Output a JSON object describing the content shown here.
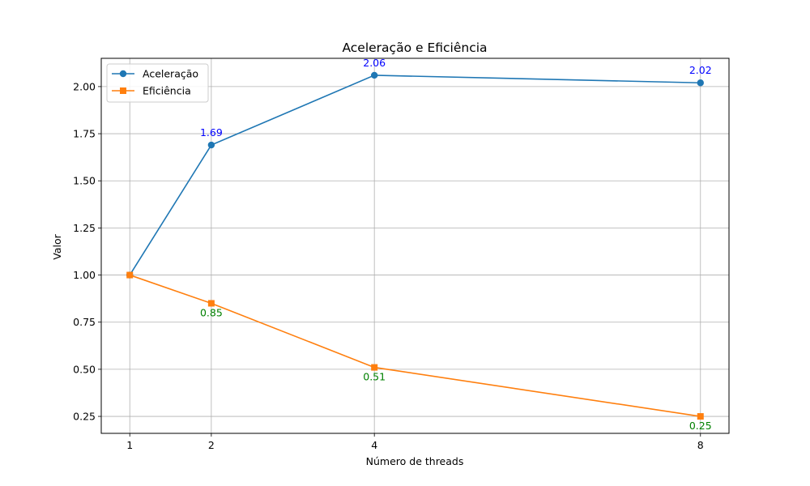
{
  "chart_data": {
    "type": "line",
    "title": "Aceleração e Eficiência",
    "xlabel": "Número de threads",
    "ylabel": "Valor",
    "x": [
      1,
      2,
      4,
      8
    ],
    "xticks": [
      "1",
      "2",
      "4",
      "8"
    ],
    "yticks": [
      "0.25",
      "0.50",
      "0.75",
      "1.00",
      "1.25",
      "1.50",
      "1.75",
      "2.00"
    ],
    "ytick_values": [
      0.25,
      0.5,
      0.75,
      1.0,
      1.25,
      1.5,
      1.75,
      2.0
    ],
    "xlim": [
      0.65,
      8.35
    ],
    "ylim": [
      0.16,
      2.15
    ],
    "grid": true,
    "legend_position": "top-left",
    "series": [
      {
        "name": "Aceleração",
        "values": [
          1.0,
          1.69,
          2.06,
          2.02
        ],
        "data_labels": [
          "",
          "1.69",
          "2.06",
          "2.02"
        ],
        "color": "#1f77b4",
        "label_color": "#0000ff",
        "marker": "circle",
        "label_position": "above"
      },
      {
        "name": "Eficiência",
        "values": [
          1.0,
          0.85,
          0.51,
          0.25
        ],
        "data_labels": [
          "",
          "0.85",
          "0.51",
          "0.25"
        ],
        "color": "#ff7f0e",
        "label_color": "#008000",
        "marker": "square",
        "label_position": "below"
      }
    ]
  }
}
